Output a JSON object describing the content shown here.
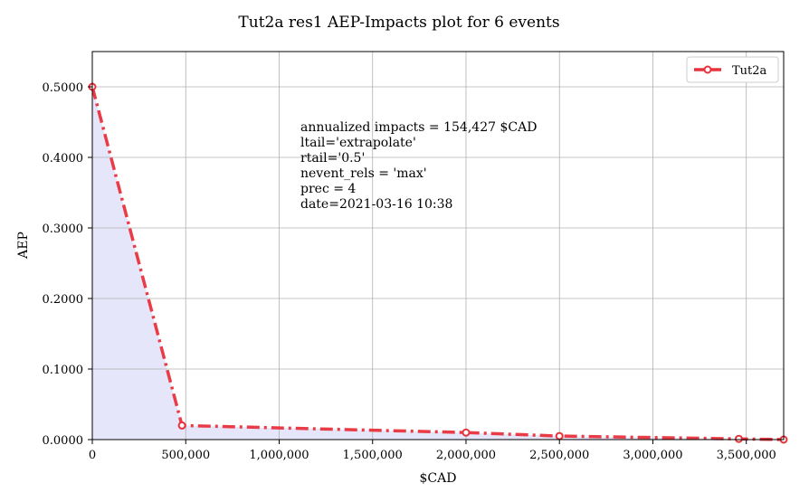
{
  "chart_data": {
    "type": "line",
    "title": "Tut2a res1 AEP-Impacts plot for 6 events",
    "xlabel": "$CAD",
    "ylabel": "AEP",
    "xlim": [
      0,
      3700000
    ],
    "ylim": [
      0,
      0.55
    ],
    "grid": true,
    "legend_position": "top-right",
    "x_ticks": [
      0,
      500000,
      1000000,
      1500000,
      2000000,
      2500000,
      3000000,
      3500000
    ],
    "x_tick_labels": [
      "0",
      "500,000",
      "1,000,000",
      "1,500,000",
      "2,000,000",
      "2,500,000",
      "3,000,000",
      "3,500,000"
    ],
    "y_ticks": [
      0,
      0.1,
      0.2,
      0.3,
      0.4,
      0.5
    ],
    "y_tick_labels": [
      "0.0000",
      "0.1000",
      "0.2000",
      "0.3000",
      "0.4000",
      "0.5000"
    ],
    "series": [
      {
        "name": "Tut2a",
        "color": "#e8323c",
        "fill_color": "#e6e6fa",
        "x": [
          0,
          480000,
          2000000,
          2500000,
          3460000,
          3700000
        ],
        "y": [
          0.5,
          0.02,
          0.01,
          0.005,
          0.001,
          0.0
        ]
      }
    ],
    "annotation_lines": [
      "annualized impacts = 154,427 $CAD",
      "ltail='extrapolate'",
      "rtail='0.5'",
      "nevent_rels = 'max'",
      "prec = 4",
      "date=2021-03-16 10:38"
    ]
  }
}
